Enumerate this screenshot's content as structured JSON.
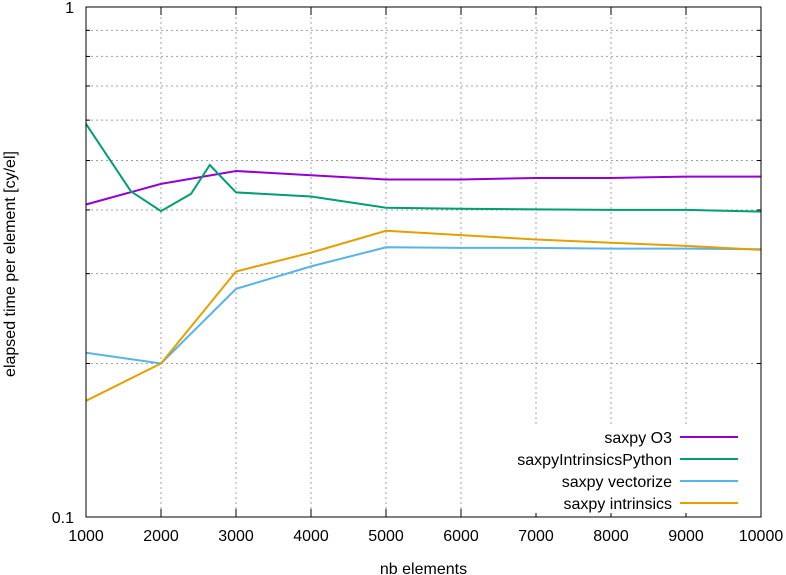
{
  "chart_data": {
    "type": "line",
    "xlabel": "nb elements",
    "ylabel": "elapsed time per element [cy/el]",
    "xlim": [
      1000,
      10000
    ],
    "ylim": [
      0.1,
      1
    ],
    "yscale": "log",
    "grid": true,
    "legend_position": "bottom-right",
    "x_ticks": [
      "1000",
      "2000",
      "3000",
      "4000",
      "5000",
      "6000",
      "7000",
      "8000",
      "9000",
      "10000"
    ],
    "y_ticks": [
      "0.1",
      "1"
    ],
    "series": [
      {
        "name": "saxpy O3",
        "color": "#9400d3",
        "points": [
          [
            1000,
            0.41
          ],
          [
            2000,
            0.45
          ],
          [
            3000,
            0.477
          ],
          [
            4000,
            0.468
          ],
          [
            5000,
            0.459
          ],
          [
            6000,
            0.459
          ],
          [
            7000,
            0.462
          ],
          [
            8000,
            0.462
          ],
          [
            9000,
            0.465
          ],
          [
            10000,
            0.465
          ]
        ]
      },
      {
        "name": "saxpyIntrinsicsPython",
        "color": "#009e73",
        "points": [
          [
            1000,
            0.59
          ],
          [
            1600,
            0.435
          ],
          [
            2000,
            0.398
          ],
          [
            2400,
            0.43
          ],
          [
            2650,
            0.49
          ],
          [
            3000,
            0.433
          ],
          [
            4000,
            0.425
          ],
          [
            5000,
            0.404
          ],
          [
            6000,
            0.402
          ],
          [
            7000,
            0.401
          ],
          [
            8000,
            0.4
          ],
          [
            9000,
            0.4
          ],
          [
            10000,
            0.397
          ]
        ]
      },
      {
        "name": "saxpy vectorize",
        "color": "#56b4e9",
        "points": [
          [
            1000,
            0.21
          ],
          [
            2000,
            0.2
          ],
          [
            3000,
            0.28
          ],
          [
            4000,
            0.31
          ],
          [
            5000,
            0.338
          ],
          [
            6000,
            0.337
          ],
          [
            7000,
            0.337
          ],
          [
            8000,
            0.336
          ],
          [
            9000,
            0.336
          ],
          [
            10000,
            0.335
          ]
        ]
      },
      {
        "name": "saxpy intrinsics",
        "color": "#e69f00",
        "points": [
          [
            1000,
            0.169
          ],
          [
            2000,
            0.2
          ],
          [
            3000,
            0.303
          ],
          [
            4000,
            0.33
          ],
          [
            5000,
            0.364
          ],
          [
            6000,
            0.357
          ],
          [
            7000,
            0.35
          ],
          [
            8000,
            0.345
          ],
          [
            9000,
            0.34
          ],
          [
            10000,
            0.334
          ]
        ]
      }
    ]
  }
}
